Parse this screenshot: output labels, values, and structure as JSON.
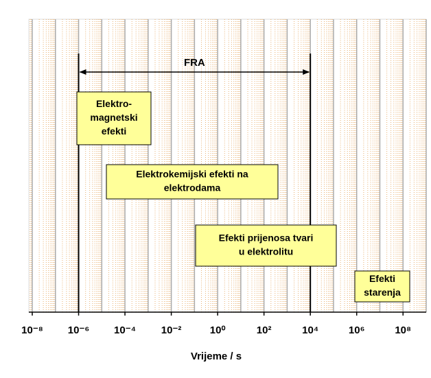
{
  "chart_data": {
    "type": "log-timeline",
    "xlabel": "Vrijeme / s",
    "xscale": "log",
    "xlim": [
      1e-08,
      1000000000.0
    ],
    "xticks": [
      {
        "value": 1e-08,
        "label": "10⁻⁸"
      },
      {
        "value": 1e-06,
        "label": "10⁻⁶"
      },
      {
        "value": 0.0001,
        "label": "10⁻⁴"
      },
      {
        "value": 0.01,
        "label": "10⁻²"
      },
      {
        "value": 1,
        "label": "10⁰"
      },
      {
        "value": 100,
        "label": "10²"
      },
      {
        "value": 10000,
        "label": "10⁴"
      },
      {
        "value": 1000000,
        "label": "10⁶"
      },
      {
        "value": 100000000,
        "label": "10⁸"
      }
    ],
    "grid": true,
    "range": {
      "label": "FRA",
      "x": [
        1e-06,
        10000
      ]
    },
    "boxes": [
      {
        "lines": [
          "Elektro-",
          "magnetski",
          "efekti"
        ]
      },
      {
        "lines": [
          "Elektrokemijski efekti na",
          "elektrodama"
        ]
      },
      {
        "lines": [
          "Efekti prijenosa tvari",
          "u elektrolitu"
        ]
      },
      {
        "lines": [
          "Efekti",
          "starenja"
        ]
      }
    ],
    "box_color": "#ffff99"
  }
}
